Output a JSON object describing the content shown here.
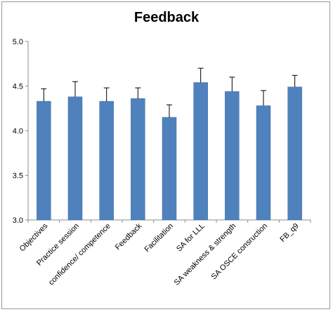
{
  "chart_data": {
    "type": "bar",
    "title": "Feedback",
    "categories": [
      "Objectives",
      "Practice session",
      "confidence/ competence",
      "Feedback",
      "Facilitation",
      "SA for LLL",
      "SA weakness & strength",
      "SA OSCE consruction",
      "FB_q9"
    ],
    "values": [
      4.33,
      4.38,
      4.33,
      4.36,
      4.15,
      4.54,
      4.44,
      4.28,
      4.49
    ],
    "errors": [
      0.14,
      0.17,
      0.15,
      0.12,
      0.14,
      0.16,
      0.16,
      0.17,
      0.13
    ],
    "ylim": [
      3.0,
      5.0
    ],
    "yticks": [
      "3.0",
      "3.5",
      "4.0",
      "4.5",
      "5.0"
    ],
    "xlabel": "",
    "ylabel": "",
    "grid": false,
    "legend": "none",
    "colors": {
      "bar": "#4f81bd",
      "bar_edge": "#3f6fa8",
      "axis": "#8c8c8c"
    }
  }
}
